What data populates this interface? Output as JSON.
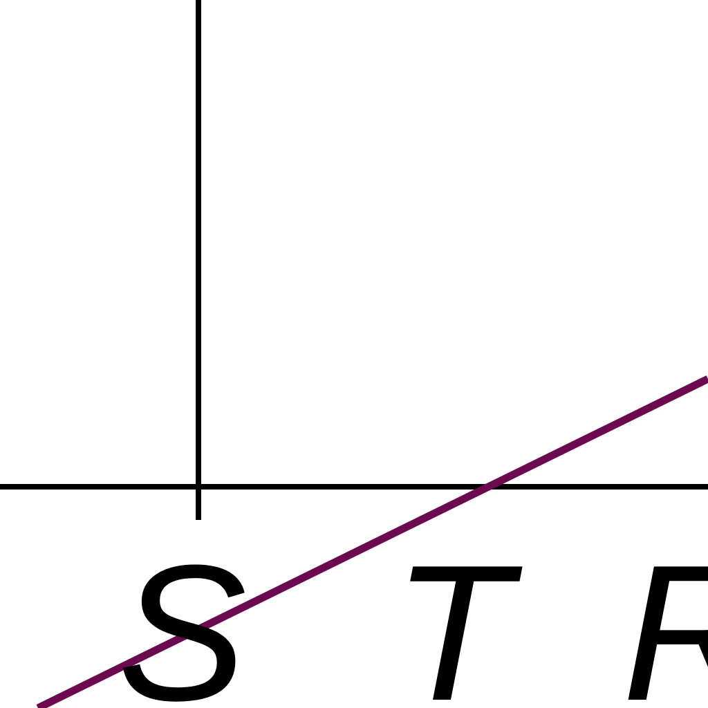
{
  "diagram": {
    "colors": {
      "background": "#ffffff",
      "axis": "#000000",
      "line": "#6b0a4e",
      "label": "#000000"
    },
    "labels": {
      "s": "S",
      "t": "T",
      "r": "R"
    }
  }
}
